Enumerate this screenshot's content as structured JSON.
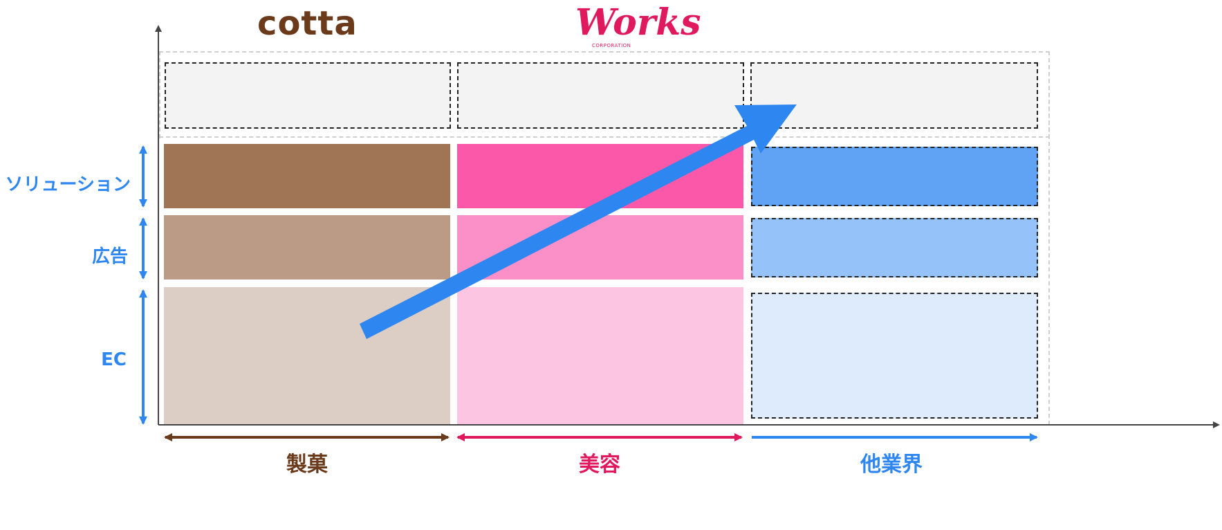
{
  "brands": {
    "cotta": "cotta",
    "works": "Works",
    "works_sub": "CORPORATION"
  },
  "row_labels": {
    "solution": "ソリューション",
    "advertising": "広告",
    "ec": "EC"
  },
  "column_labels": {
    "confectionery": "製菓",
    "beauty": "美容",
    "other": "他業界"
  },
  "colors": {
    "axis": "#444444",
    "accent_blue": "#2E86F0",
    "cotta_brown": "#6B3A1B",
    "works_pink": "#E0185E",
    "brown_solution": "#A07555",
    "brown_ad": "#BB9B85",
    "brown_ec": "#DCCEC4",
    "pink_solution": "#FC58AA",
    "pink_ad": "#FB8FC7",
    "pink_ec": "#FCC6E3",
    "blue_solution": "#60A3F5",
    "blue_ad": "#95C2F9",
    "blue_ec": "#DDEBFD",
    "top_placeholder": "#F3F3F3"
  }
}
